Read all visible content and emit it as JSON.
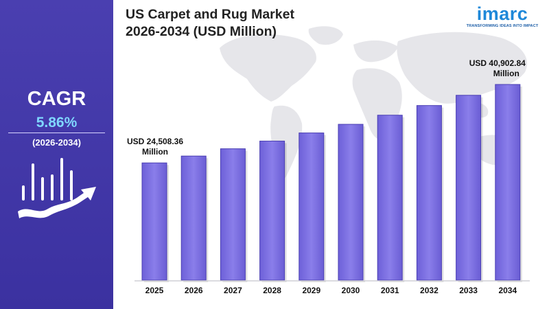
{
  "header": {
    "title_line1": "US Carpet and Rug Market",
    "title_line2": "2026-2034 (USD Million)"
  },
  "logo": {
    "word": "imarc",
    "tagline": "TRANSFORMING IDEAS INTO IMPACT",
    "color": "#1e88d9"
  },
  "sidebar": {
    "cagr_label": "CAGR",
    "cagr_value": "5.86%",
    "cagr_period": "(2026-2034)",
    "background_color": "#4a3fb0",
    "accent_color": "#7fd7ff",
    "icon": "growth-chart-arrow-icon"
  },
  "chart_data": {
    "type": "bar",
    "categories": [
      "2025",
      "2026",
      "2027",
      "2028",
      "2029",
      "2030",
      "2031",
      "2032",
      "2033",
      "2034"
    ],
    "values": [
      24508.36,
      25943,
      27463,
      29071,
      30773,
      32575,
      34483,
      36502,
      38640,
      40902.84
    ],
    "annotations": [
      {
        "category": "2025",
        "line1": "USD 24,508.36",
        "line2": "Million"
      },
      {
        "category": "2034",
        "line1": "USD 40,902.84",
        "line2": "Million"
      }
    ],
    "bar_color": "#7b6fe0",
    "grid": false,
    "background": "world map"
  }
}
